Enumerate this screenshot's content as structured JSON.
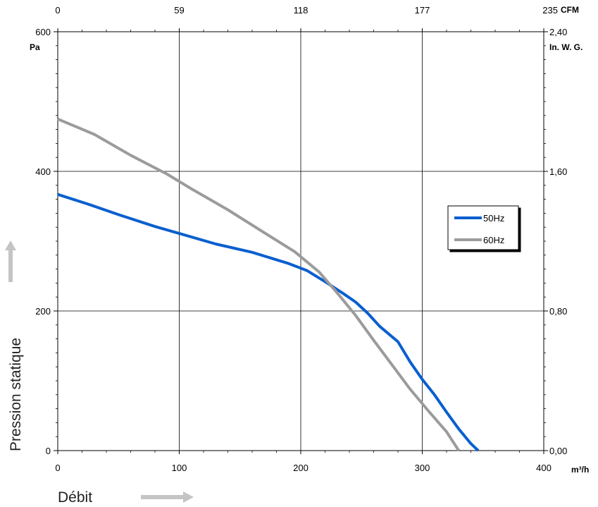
{
  "colors": {
    "series_50hz": "#0a5fcf",
    "series_60hz": "#9b9b9b",
    "grid": "#000000",
    "arrow": "#c4c4c4"
  },
  "units": {
    "left": "Pa",
    "right": "In. W. G.",
    "top": "CFM",
    "bottom": "m³/h"
  },
  "chart_data": {
    "type": "line",
    "xlabel": "Débit",
    "ylabel": "Pression statique",
    "xlim": [
      0,
      400
    ],
    "ylim": [
      0,
      600
    ],
    "x_ticks": [
      "0",
      "100",
      "200",
      "300",
      "400"
    ],
    "y_ticks": [
      "0",
      "200",
      "400",
      "600"
    ],
    "top_ticks": [
      "0",
      "59",
      "118",
      "177",
      "235"
    ],
    "right_ticks": [
      "0,00",
      "0,80",
      "1,60",
      "2,40"
    ],
    "grid": true,
    "legend_position": "right",
    "series": [
      {
        "name": "50Hz",
        "color": "#0a5fcf",
        "x": [
          0,
          25,
          50,
          80,
          100,
          130,
          160,
          190,
          205,
          220,
          235,
          245,
          255,
          265,
          280,
          290,
          300,
          310,
          320,
          330,
          340,
          346
        ],
        "y": [
          367,
          353,
          338,
          321,
          311,
          296,
          284,
          268,
          258,
          242,
          225,
          213,
          197,
          178,
          156,
          127,
          102,
          80,
          55,
          31,
          10,
          0
        ]
      },
      {
        "name": "60Hz",
        "color": "#9b9b9b",
        "x": [
          0,
          30,
          60,
          90,
          110,
          140,
          170,
          195,
          215,
          230,
          245,
          260,
          275,
          290,
          305,
          320,
          330
        ],
        "y": [
          475,
          453,
          423,
          396,
          375,
          345,
          312,
          285,
          256,
          226,
          194,
          158,
          123,
          88,
          57,
          27,
          0
        ]
      }
    ]
  }
}
